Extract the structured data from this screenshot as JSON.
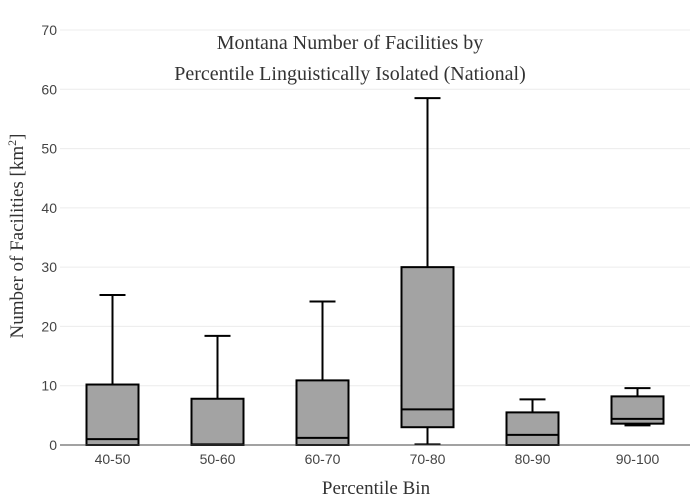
{
  "chart_data": {
    "type": "box",
    "title_lines": [
      "Montana Number of Facilities by",
      "Percentile Linguistically Isolated (National)"
    ],
    "xlabel": "Percentile Bin",
    "ylabel_main": "Number of Facilities  [km",
    "ylabel_sup": "2",
    "ylabel_close": "]",
    "ylim": [
      0,
      70
    ],
    "yticks": [
      0,
      10,
      20,
      30,
      40,
      50,
      60,
      70
    ],
    "grid": true,
    "categories": [
      "40-50",
      "50-60",
      "60-70",
      "70-80",
      "80-90",
      "90-100"
    ],
    "boxes": [
      {
        "category": "40-50",
        "min": 0,
        "q1": 0,
        "median": 1,
        "q3": 10.2,
        "max": 25.3
      },
      {
        "category": "50-60",
        "min": 0,
        "q1": 0,
        "median": 0.1,
        "q3": 7.8,
        "max": 18.4
      },
      {
        "category": "60-70",
        "min": 0,
        "q1": 0,
        "median": 1.2,
        "q3": 10.9,
        "max": 24.2
      },
      {
        "category": "70-80",
        "min": 0.1,
        "q1": 3.0,
        "median": 6.0,
        "q3": 30.0,
        "max": 58.5
      },
      {
        "category": "80-90",
        "min": 0,
        "q1": 0,
        "median": 1.7,
        "q3": 5.5,
        "max": 7.7
      },
      {
        "category": "90-100",
        "min": 3.3,
        "q1": 3.6,
        "median": 4.4,
        "q3": 8.2,
        "max": 9.6
      }
    ],
    "colors": {
      "box_fill": "#a3a3a3",
      "box_stroke": "#000000",
      "grid": "#ececec"
    }
  }
}
